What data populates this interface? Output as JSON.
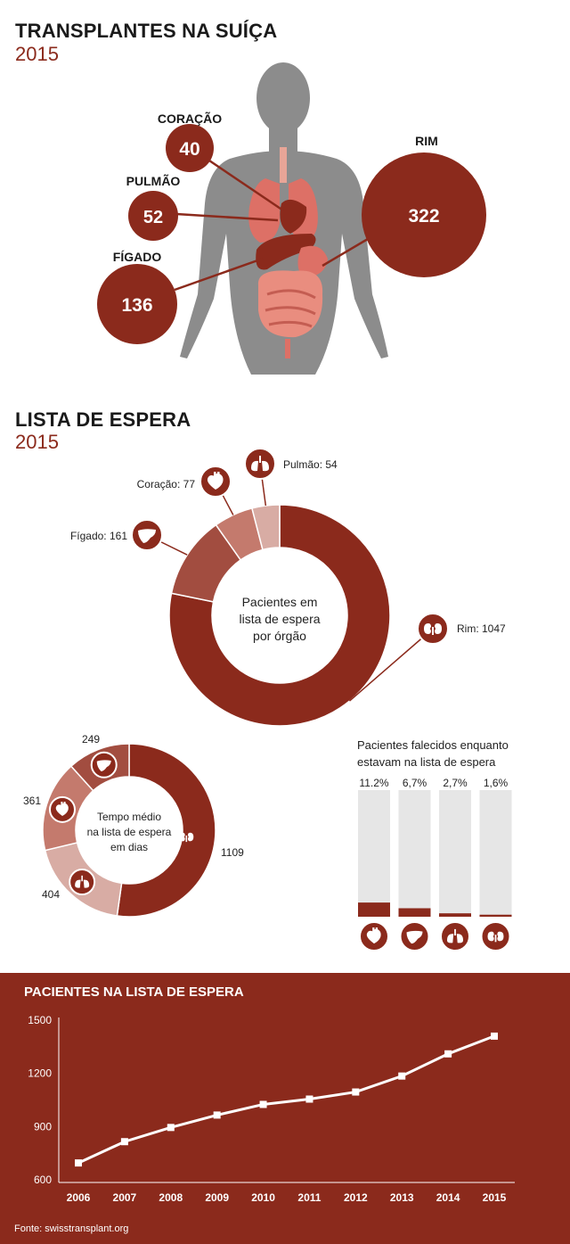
{
  "colors": {
    "primary": "#8b2a1c",
    "liver": "#a24d40",
    "heart": "#c47a6d",
    "lung": "#d8aca4",
    "bar_bg": "#e6e6e6",
    "body": "#8c8c8c"
  },
  "transplants": {
    "title": "TRANSPLANTES NA SUÍÇA",
    "year": "2015",
    "organs": [
      {
        "label": "CORAÇÃO",
        "value": "40"
      },
      {
        "label": "PULMÃO",
        "value": "52"
      },
      {
        "label": "FÍGADO",
        "value": "136"
      },
      {
        "label": "RIM",
        "value": "322"
      }
    ]
  },
  "waiting": {
    "title": "LISTA DE ESPERA",
    "year": "2015",
    "center_text": [
      "Pacientes em",
      "lista de espera",
      "por órgão"
    ]
  },
  "time_chart": {
    "center_text": [
      "Tempo médio",
      "na lista de espera",
      "em dias"
    ]
  },
  "deaths": {
    "title_lines": [
      "Pacientes falecidos enquanto",
      "estavam na lista de espera"
    ]
  },
  "line_chart": {
    "title": "PACIENTES NA LISTA DE ESPERA"
  },
  "source": "Fonte: swisstransplant.org",
  "chart_data": [
    {
      "type": "pie",
      "title": "Pacientes em lista de espera por órgão",
      "categories": [
        "Rim",
        "Fígado",
        "Coração",
        "Pulmão"
      ],
      "labels": [
        "Rim: 1047",
        "Fígado: 161",
        "Coração: 77",
        "Pulmão: 54"
      ],
      "values": [
        1047,
        161,
        77,
        54
      ],
      "icons": [
        "kidney-icon",
        "liver-icon",
        "heart-icon",
        "lungs-icon"
      ]
    },
    {
      "type": "pie",
      "title": "Tempo médio na lista de espera em dias",
      "categories": [
        "Rim",
        "Pulmão",
        "Coração",
        "Fígado"
      ],
      "labels": [
        "1109",
        "404",
        "361",
        "249"
      ],
      "values": [
        1109,
        404,
        361,
        249
      ],
      "icons": [
        "kidney-icon",
        "lungs-icon",
        "heart-icon",
        "liver-icon"
      ]
    },
    {
      "type": "bar",
      "title": "Pacientes falecidos enquanto estavam na lista de espera",
      "categories": [
        "Coração",
        "Fígado",
        "Pulmão",
        "Rim"
      ],
      "labels": [
        "11.2%",
        "6,7%",
        "2,7%",
        "1,6%"
      ],
      "values": [
        11.2,
        6.7,
        2.7,
        1.6
      ],
      "ylim": [
        0,
        100
      ],
      "icons": [
        "heart-icon",
        "liver-icon",
        "lungs-icon",
        "kidney-icon"
      ]
    },
    {
      "type": "line",
      "title": "PACIENTES NA LISTA DE ESPERA",
      "x": [
        "2006",
        "2007",
        "2008",
        "2009",
        "2010",
        "2011",
        "2012",
        "2013",
        "2014",
        "2015"
      ],
      "y": [
        695,
        815,
        895,
        965,
        1025,
        1055,
        1095,
        1185,
        1310,
        1410
      ],
      "ylim": [
        600,
        1500
      ],
      "yticks": [
        "1500",
        "1200",
        "900",
        "600"
      ],
      "grid": false
    }
  ]
}
